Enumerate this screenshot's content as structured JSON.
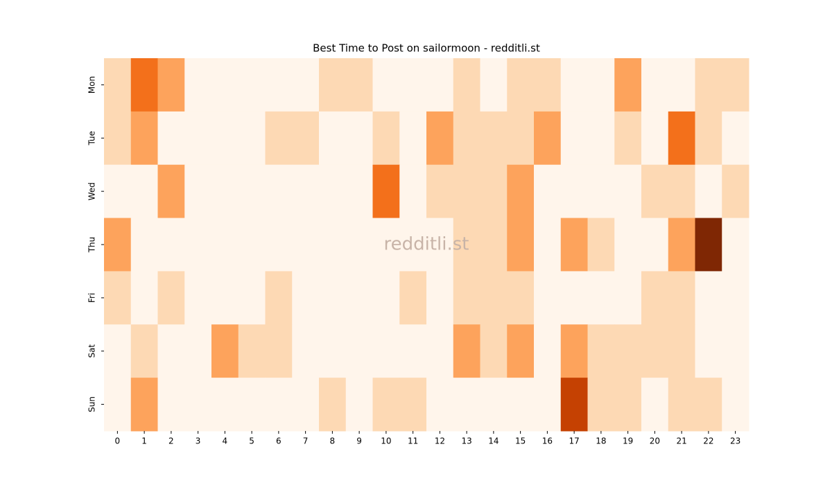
{
  "chart_data": {
    "type": "heatmap",
    "title": "Best Time to Post on sailormoon - redditli.st",
    "watermark": "redditli.st",
    "x": [
      0,
      1,
      2,
      3,
      4,
      5,
      6,
      7,
      8,
      9,
      10,
      11,
      12,
      13,
      14,
      15,
      16,
      17,
      18,
      19,
      20,
      21,
      22,
      23
    ],
    "categories": [
      "Mon",
      "Tue",
      "Wed",
      "Thu",
      "Fri",
      "Sat",
      "Sun"
    ],
    "values": [
      [
        1,
        3,
        2,
        0,
        0,
        0,
        0,
        0,
        1,
        1,
        0,
        0,
        0,
        1,
        0,
        1,
        1,
        0,
        0,
        2,
        0,
        0,
        1,
        1
      ],
      [
        1,
        2,
        0,
        0,
        0,
        0,
        1,
        1,
        0,
        0,
        1,
        0,
        2,
        1,
        1,
        1,
        2,
        0,
        0,
        1,
        0,
        3,
        1,
        0
      ],
      [
        0,
        0,
        2,
        0,
        0,
        0,
        0,
        0,
        0,
        0,
        3,
        0,
        1,
        1,
        1,
        2,
        0,
        0,
        0,
        0,
        1,
        1,
        0,
        1
      ],
      [
        2,
        0,
        0,
        0,
        0,
        0,
        0,
        0,
        0,
        0,
        0,
        0,
        0,
        1,
        1,
        2,
        0,
        2,
        1,
        0,
        0,
        2,
        5,
        0
      ],
      [
        1,
        0,
        1,
        0,
        0,
        0,
        1,
        0,
        0,
        0,
        0,
        1,
        0,
        1,
        1,
        1,
        0,
        0,
        0,
        0,
        1,
        1,
        0,
        0
      ],
      [
        0,
        1,
        0,
        0,
        2,
        1,
        1,
        0,
        0,
        0,
        0,
        0,
        0,
        2,
        1,
        2,
        0,
        2,
        1,
        1,
        1,
        1,
        0,
        0
      ],
      [
        0,
        2,
        0,
        0,
        0,
        0,
        0,
        0,
        1,
        0,
        1,
        1,
        0,
        0,
        0,
        0,
        0,
        4,
        1,
        1,
        0,
        1,
        1,
        0
      ]
    ],
    "colormap": [
      "#fff5eb",
      "#fdd9b4",
      "#fda35c",
      "#f3701b",
      "#c54102",
      "#7f2704"
    ],
    "zlim": [
      0,
      5
    ]
  }
}
